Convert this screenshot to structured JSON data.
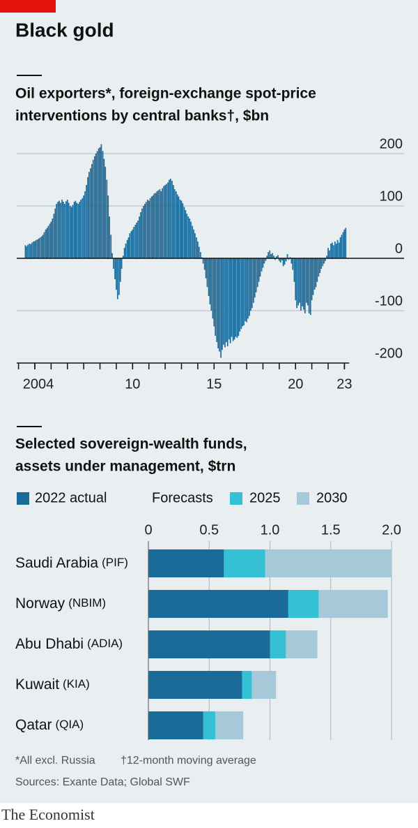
{
  "header": {
    "title": "Black gold"
  },
  "chart_data": [
    {
      "type": "bar",
      "title_lines": [
        "Oil exporters*, foreign-exchange spot-price",
        "interventions by central banks†, $bn"
      ],
      "x": [
        2003.42,
        2003.5,
        2003.58,
        2003.67,
        2003.75,
        2003.83,
        2003.92,
        2004,
        2004.08,
        2004.17,
        2004.25,
        2004.33,
        2004.42,
        2004.5,
        2004.58,
        2004.67,
        2004.75,
        2004.83,
        2004.92,
        2005,
        2005.08,
        2005.17,
        2005.25,
        2005.33,
        2005.42,
        2005.5,
        2005.58,
        2005.67,
        2005.75,
        2005.83,
        2005.92,
        2006,
        2006.08,
        2006.17,
        2006.25,
        2006.33,
        2006.42,
        2006.5,
        2006.58,
        2006.67,
        2006.75,
        2006.83,
        2006.92,
        2007,
        2007.08,
        2007.17,
        2007.25,
        2007.33,
        2007.42,
        2007.5,
        2007.58,
        2007.67,
        2007.75,
        2007.83,
        2007.92,
        2008,
        2008.08,
        2008.17,
        2008.25,
        2008.33,
        2008.42,
        2008.5,
        2008.58,
        2008.67,
        2008.75,
        2008.83,
        2008.92,
        2009,
        2009.08,
        2009.17,
        2009.25,
        2009.33,
        2009.42,
        2009.5,
        2009.58,
        2009.67,
        2009.75,
        2009.83,
        2009.92,
        2010,
        2010.08,
        2010.17,
        2010.25,
        2010.33,
        2010.42,
        2010.5,
        2010.58,
        2010.67,
        2010.75,
        2010.83,
        2010.92,
        2011,
        2011.08,
        2011.17,
        2011.25,
        2011.33,
        2011.42,
        2011.5,
        2011.58,
        2011.67,
        2011.75,
        2011.83,
        2011.92,
        2012,
        2012.08,
        2012.17,
        2012.25,
        2012.33,
        2012.42,
        2012.5,
        2012.58,
        2012.67,
        2012.75,
        2012.83,
        2012.92,
        2013,
        2013.08,
        2013.17,
        2013.25,
        2013.33,
        2013.42,
        2013.5,
        2013.58,
        2013.67,
        2013.75,
        2013.83,
        2013.92,
        2014,
        2014.08,
        2014.17,
        2014.25,
        2014.33,
        2014.42,
        2014.5,
        2014.58,
        2014.67,
        2014.75,
        2014.83,
        2014.92,
        2015,
        2015.08,
        2015.17,
        2015.25,
        2015.33,
        2015.42,
        2015.5,
        2015.58,
        2015.67,
        2015.75,
        2015.83,
        2015.92,
        2016,
        2016.08,
        2016.17,
        2016.25,
        2016.33,
        2016.42,
        2016.5,
        2016.58,
        2016.67,
        2016.75,
        2016.83,
        2016.92,
        2017,
        2017.08,
        2017.17,
        2017.25,
        2017.33,
        2017.42,
        2017.5,
        2017.58,
        2017.67,
        2017.75,
        2017.83,
        2017.92,
        2018,
        2018.08,
        2018.17,
        2018.25,
        2018.33,
        2018.42,
        2018.5,
        2018.58,
        2018.67,
        2018.75,
        2018.83,
        2018.92,
        2019,
        2019.08,
        2019.17,
        2019.25,
        2019.33,
        2019.42,
        2019.5,
        2019.58,
        2019.67,
        2019.75,
        2019.83,
        2019.92,
        2020,
        2020.08,
        2020.17,
        2020.25,
        2020.33,
        2020.42,
        2020.5,
        2020.58,
        2020.67,
        2020.75,
        2020.83,
        2020.92,
        2021,
        2021.08,
        2021.17,
        2021.25,
        2021.33,
        2021.42,
        2021.5,
        2021.58,
        2021.67,
        2021.75,
        2021.83,
        2021.92,
        2022,
        2022.08,
        2022.17,
        2022.25,
        2022.33,
        2022.42,
        2022.5,
        2022.58,
        2022.67,
        2022.75,
        2022.83,
        2022.92,
        2023,
        2023.08
      ],
      "values": [
        25,
        23,
        26,
        28,
        27,
        30,
        32,
        33,
        35,
        36,
        38,
        40,
        42,
        45,
        50,
        55,
        58,
        62,
        66,
        70,
        76,
        85,
        95,
        104,
        108,
        110,
        106,
        112,
        108,
        104,
        109,
        112,
        106,
        100,
        98,
        102,
        108,
        110,
        106,
        104,
        108,
        112,
        115,
        120,
        128,
        140,
        155,
        165,
        172,
        180,
        188,
        195,
        200,
        205,
        210,
        212,
        218,
        205,
        190,
        175,
        150,
        120,
        80,
        45,
        10,
        -20,
        -40,
        -60,
        -78,
        -70,
        -45,
        -20,
        5,
        20,
        28,
        35,
        40,
        48,
        52,
        55,
        60,
        64,
        68,
        72,
        80,
        88,
        95,
        100,
        104,
        108,
        112,
        110,
        115,
        118,
        120,
        124,
        125,
        128,
        130,
        132,
        128,
        134,
        138,
        140,
        142,
        145,
        150,
        152,
        148,
        140,
        132,
        128,
        122,
        118,
        112,
        110,
        105,
        98,
        92,
        85,
        80,
        76,
        70,
        62,
        55,
        48,
        40,
        32,
        22,
        12,
        2,
        -10,
        -22,
        -38,
        -55,
        -72,
        -88,
        -100,
        -115,
        -130,
        -148,
        -160,
        -172,
        -178,
        -190,
        -175,
        -165,
        -170,
        -160,
        -168,
        -155,
        -162,
        -150,
        -158,
        -155,
        -150,
        -152,
        -148,
        -140,
        -135,
        -130,
        -128,
        -120,
        -122,
        -115,
        -110,
        -100,
        -95,
        -85,
        -75,
        -65,
        -55,
        -45,
        -35,
        -25,
        -18,
        -10,
        -5,
        5,
        12,
        15,
        8,
        10,
        5,
        -3,
        4,
        6,
        -5,
        -8,
        -4,
        -15,
        -12,
        -6,
        8,
        -3,
        2,
        -10,
        -22,
        -45,
        -80,
        -95,
        -90,
        -85,
        -100,
        -92,
        -98,
        -105,
        -85,
        -90,
        -105,
        -108,
        -80,
        -70,
        -60,
        -55,
        -45,
        -35,
        -28,
        -20,
        -15,
        -10,
        -5,
        5,
        20,
        15,
        28,
        30,
        25,
        32,
        28,
        35,
        30,
        40,
        45,
        50,
        55,
        58
      ],
      "color": "#1a6a9a",
      "xlim": [
        2003,
        2023.3
      ],
      "xticks": [
        2004,
        {
          "value": 2010,
          "label": "10"
        },
        {
          "value": 2015,
          "label": "15"
        },
        {
          "value": 2020,
          "label": "20"
        },
        {
          "value": 2023,
          "label": "23"
        }
      ],
      "x_minor_ticks": [
        2003,
        2004,
        2005,
        2006,
        2007,
        2008,
        2009,
        2010,
        2011,
        2012,
        2013,
        2014,
        2015,
        2016,
        2017,
        2018,
        2019,
        2020,
        2021,
        2022,
        2023
      ],
      "ylim": [
        -200,
        220
      ],
      "yticks": [
        -200,
        -100,
        0,
        100,
        200
      ],
      "grid": true
    },
    {
      "type": "bar",
      "orientation": "horizontal",
      "overlay": true,
      "title_lines": [
        "Selected sovereign-wealth funds,",
        "assets under management, $trn"
      ],
      "categories": [
        "Saudi Arabia",
        "Norway",
        "Abu Dhabi",
        "Kuwait",
        "Qatar"
      ],
      "category_codes": [
        "(PIF)",
        "(NBIM)",
        "(ADIA)",
        "(KIA)",
        "(QIA)"
      ],
      "legend_group_label": "Forecasts",
      "series": [
        {
          "name": "2022 actual",
          "color": "#1a6a9a",
          "values": [
            0.62,
            1.15,
            1.0,
            0.77,
            0.45
          ]
        },
        {
          "name": "2025",
          "color": "#36c0d4",
          "values": [
            0.96,
            1.4,
            1.13,
            0.85,
            0.55
          ]
        },
        {
          "name": "2030",
          "color": "#a6c9da",
          "values": [
            2.0,
            1.97,
            1.39,
            1.05,
            0.78
          ]
        }
      ],
      "xlim": [
        0,
        2
      ],
      "xticks": [
        0,
        0.5,
        {
          "value": 1,
          "label": "1.0"
        },
        1.5,
        {
          "value": 2,
          "label": "2.0"
        }
      ],
      "grid": true
    }
  ],
  "footnotes": [
    "*All excl. Russia",
    "†12-month moving average"
  ],
  "sources": "Sources: Exante Data; Global SWF",
  "brand": "The Economist"
}
